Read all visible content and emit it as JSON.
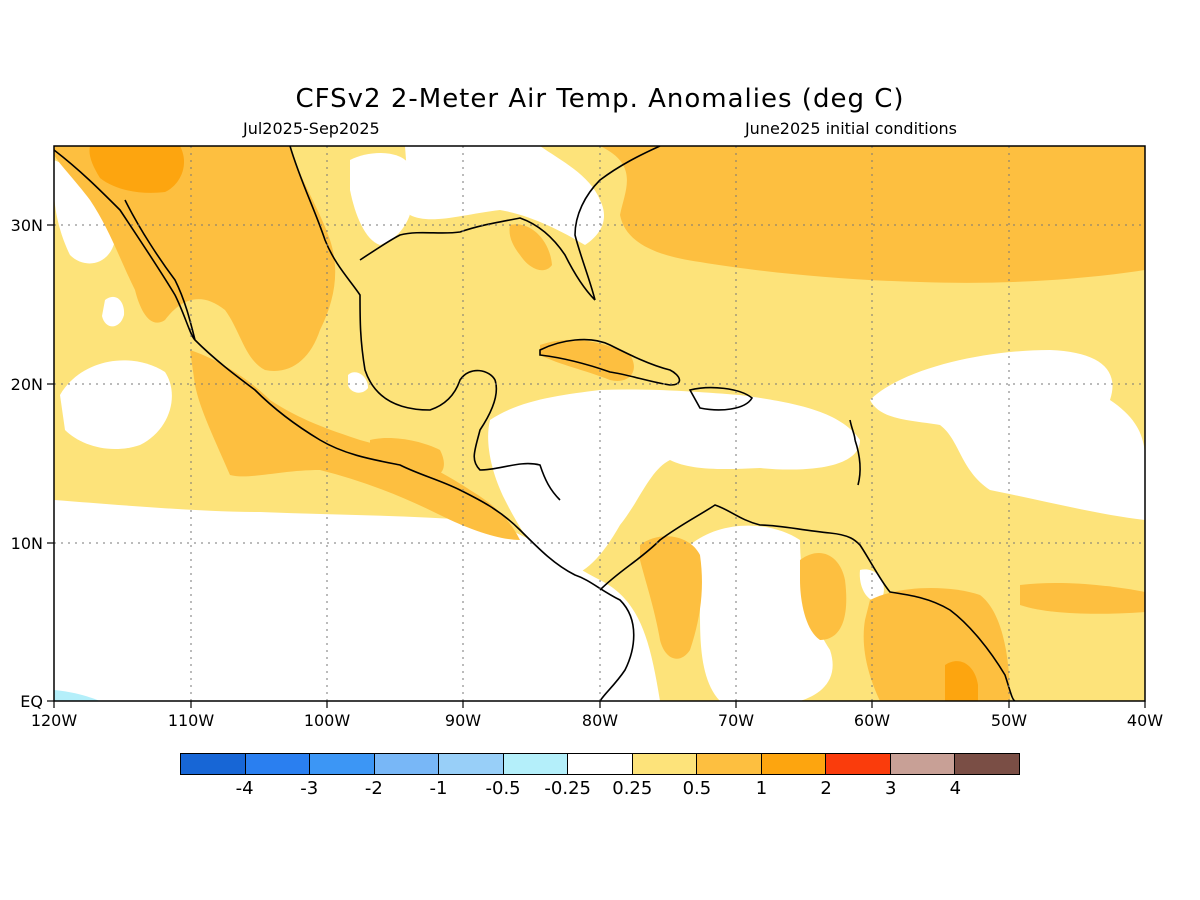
{
  "title": "CFSv2 2-Meter Air Temp. Anomalies (deg C)",
  "subtitle_left": "Jul2025-Sep2025",
  "subtitle_right": "June2025 initial conditions",
  "map": {
    "lon_range": [
      -120,
      -40
    ],
    "lat_range": [
      0,
      35
    ],
    "lon_ticks": [
      "120W",
      "110W",
      "100W",
      "90W",
      "80W",
      "70W",
      "60W",
      "50W",
      "40W"
    ],
    "lat_ticks": [
      "EQ",
      "10N",
      "20N",
      "30N"
    ],
    "gridlines": "dotted"
  },
  "colorbar": {
    "colors": [
      "#1766d6",
      "#2a7ff0",
      "#3c96f5",
      "#78b7f7",
      "#98cff8",
      "#b4effa",
      "#ffffff",
      "#fde37a",
      "#fdbf40",
      "#fda50f",
      "#fa3c0c",
      "#c8a096",
      "#7a4e45"
    ],
    "labels": [
      "-4",
      "-3",
      "-2",
      "-1",
      "-0.5",
      "-0.25",
      "0.25",
      "0.5",
      "1",
      "2",
      "3",
      "4"
    ]
  },
  "legend_colors": {
    "anom_025_05": "#fde37a",
    "anom_05_1": "#fdbf40",
    "anom_1_2": "#fda50f",
    "anom_neg_025_05": "#b4effa"
  }
}
